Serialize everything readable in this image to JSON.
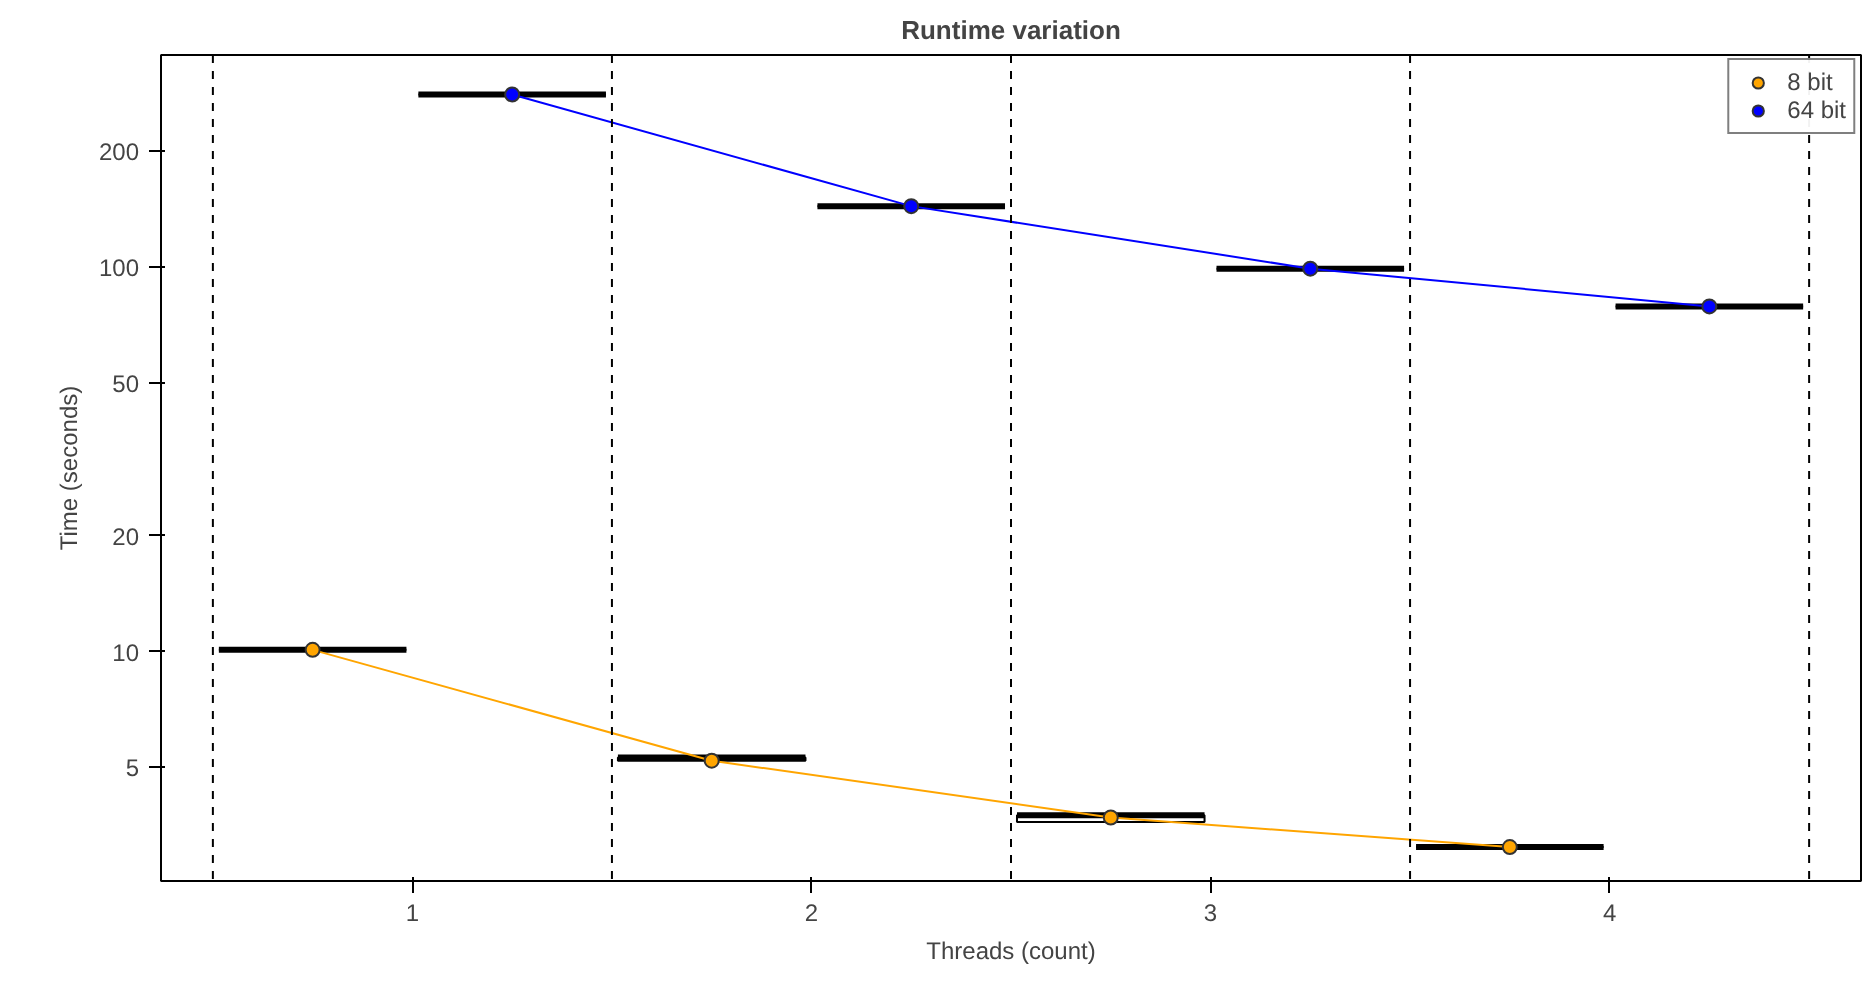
{
  "chart_data": {
    "type": "box",
    "title": "Runtime variation",
    "xlabel": "Threads (count)",
    "ylabel": "Time (seconds)",
    "log": "y",
    "xlim": [
      0.37,
      4.63
    ],
    "xticks": [
      1,
      2,
      3,
      4
    ],
    "ylim": [
      2.53,
      356
    ],
    "yticks": [
      5,
      10,
      20,
      50,
      100,
      200
    ],
    "grid": false,
    "legend": "top right",
    "series": [
      {
        "color": "#000000",
        "x": [
          0.75,
          1.75,
          2.75,
          3.75
        ],
        "boxes": [
          {
            "low": 10.1,
            "q1": 10.1,
            "median": 10.1,
            "q3": 10.1,
            "high": 10.1
          },
          {
            "low": 5.2,
            "q1": 5.2,
            "median": 5.3,
            "q3": 5.3,
            "high": 5.3
          },
          {
            "low": 3.6,
            "q1": 3.6,
            "median": 3.75,
            "q3": 3.75,
            "high": 3.75
          },
          {
            "low": 3.1,
            "q1": 3.1,
            "median": 3.1,
            "q3": 3.1,
            "high": 3.1
          }
        ]
      },
      {
        "color": "#000000",
        "x": [
          1.25,
          2.25,
          3.25,
          4.25
        ],
        "boxes": [
          {
            "low": 281,
            "q1": 281,
            "median": 281,
            "q3": 281,
            "high": 281
          },
          {
            "low": 144,
            "q1": 144,
            "median": 144,
            "q3": 144,
            "high": 144
          },
          {
            "low": 99,
            "q1": 99,
            "median": 99,
            "q3": 99,
            "high": 99
          },
          {
            "low": 79,
            "q1": 79,
            "median": 79,
            "q3": 79,
            "high": 79
          }
        ]
      },
      {
        "type": "line",
        "name": "8 bit",
        "color": "#ffa500",
        "marker": "circle",
        "x": [
          0.75,
          1.75,
          2.75,
          3.75
        ],
        "values": [
          10.1,
          5.2,
          3.7,
          3.1
        ]
      },
      {
        "type": "line",
        "name": "64 bit",
        "color": "#0000ff",
        "marker": "circle",
        "x": [
          1.25,
          2.25,
          3.25,
          4.25
        ],
        "values": [
          281,
          144,
          99,
          79
        ]
      }
    ],
    "ref_lines": [
      {
        "axis": "x",
        "value": 0.5,
        "line_style": "dashed",
        "color": "#000000"
      },
      {
        "axis": "x",
        "value": 1.5,
        "line_style": "dashed",
        "color": "#000000"
      },
      {
        "axis": "x",
        "value": 2.5,
        "line_style": "dashed",
        "color": "#000000"
      },
      {
        "axis": "x",
        "value": 3.5,
        "line_style": "dashed",
        "color": "#000000"
      },
      {
        "axis": "x",
        "value": 4.5,
        "line_style": "dashed",
        "color": "#000000"
      }
    ]
  }
}
